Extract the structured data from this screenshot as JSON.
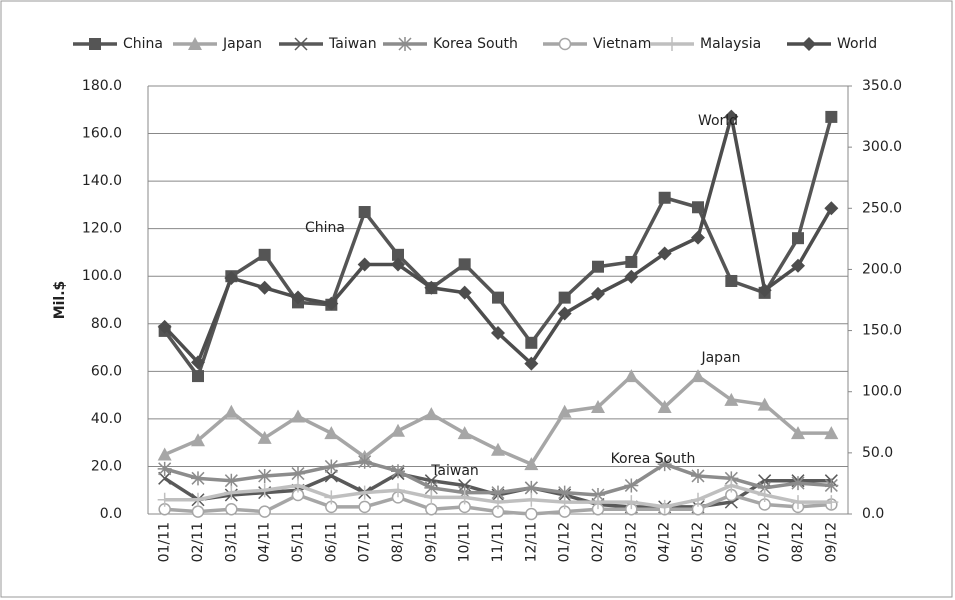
{
  "chart_data": {
    "type": "line",
    "y_label": "Mil.$",
    "categories": [
      "01/11",
      "02/11",
      "03/11",
      "04/11",
      "05/11",
      "06/11",
      "07/11",
      "08/11",
      "09/11",
      "10/11",
      "11/11",
      "12/11",
      "01/12",
      "02/12",
      "03/12",
      "04/12",
      "05/12",
      "06/12",
      "07/12",
      "08/12",
      "09/12"
    ],
    "series": [
      {
        "name": "China",
        "color": "#555555",
        "marker": "square",
        "values": [
          77,
          58,
          100,
          109,
          89,
          88,
          127,
          109,
          95,
          105,
          91,
          72,
          91,
          104,
          106,
          133,
          129,
          98,
          93,
          116,
          167
        ]
      },
      {
        "name": "Japan",
        "color": "#a6a6a6",
        "marker": "triangle",
        "values": [
          25,
          31,
          43,
          32,
          41,
          34,
          24,
          35,
          42,
          34,
          27,
          21,
          43,
          45,
          58,
          45,
          58,
          48,
          46,
          34,
          34
        ]
      },
      {
        "name": "Taiwan",
        "color": "#595959",
        "marker": "x",
        "values": [
          15,
          6,
          8,
          9,
          10,
          16,
          9,
          17,
          14,
          12,
          8,
          11,
          8,
          4,
          3,
          3,
          3,
          5,
          14,
          14,
          14
        ]
      },
      {
        "name": "Korea South",
        "color": "#8c8c8c",
        "marker": "star",
        "values": [
          19,
          15,
          14,
          16,
          17,
          20,
          22,
          18,
          11,
          9,
          9,
          11,
          9,
          8,
          12,
          21,
          16,
          15,
          11,
          13,
          12
        ]
      },
      {
        "name": "Vietnam",
        "color": "#a6a6a6",
        "marker": "circle",
        "values": [
          2,
          1,
          2,
          1,
          8,
          3,
          3,
          7,
          2,
          3,
          1,
          0,
          1,
          2,
          2,
          2,
          2,
          8,
          4,
          3,
          4
        ]
      },
      {
        "name": "Malaysia",
        "color": "#bfbfbf",
        "marker": "plus",
        "values": [
          6,
          6,
          9,
          10,
          12,
          7,
          9,
          10,
          7,
          7,
          5,
          6,
          5,
          5,
          5,
          3,
          6,
          12,
          8,
          5,
          5
        ]
      },
      {
        "name": "World",
        "color": "#4d4d4d",
        "marker": "diamond",
        "axis": "y2",
        "values": [
          153,
          124,
          193,
          185,
          177,
          172,
          204,
          204,
          185,
          181,
          148,
          123,
          164,
          180,
          194,
          213,
          226,
          325,
          183,
          203,
          250
        ]
      }
    ],
    "annotations": [
      "China",
      "World",
      "Japan",
      "Taiwan",
      "Korea South"
    ],
    "ylim": [
      0,
      180
    ],
    "yticks": [
      {
        "value": 0,
        "label": "0.0"
      },
      {
        "value": 20,
        "label": "20.0"
      },
      {
        "value": 40,
        "label": "40.0"
      },
      {
        "value": 60,
        "label": "60.0"
      },
      {
        "value": 80,
        "label": "80.0"
      },
      {
        "value": 100,
        "label": "100.0"
      },
      {
        "value": 120,
        "label": "120.0"
      },
      {
        "value": 140,
        "label": "140.0"
      },
      {
        "value": 160,
        "label": "160.0"
      },
      {
        "value": 180,
        "label": "180.0"
      }
    ],
    "y2lim": [
      0,
      350
    ],
    "y2ticks": [
      {
        "value": 0,
        "label": "0.0"
      },
      {
        "value": 50,
        "label": "50.0"
      },
      {
        "value": 100,
        "label": "100.0"
      },
      {
        "value": 150,
        "label": "150.0"
      },
      {
        "value": 200,
        "label": "200.0"
      },
      {
        "value": 250,
        "label": "250.0"
      },
      {
        "value": 300,
        "label": "300.0"
      },
      {
        "value": 350,
        "label": "350.0"
      }
    ],
    "grid": true,
    "legend": "top"
  }
}
